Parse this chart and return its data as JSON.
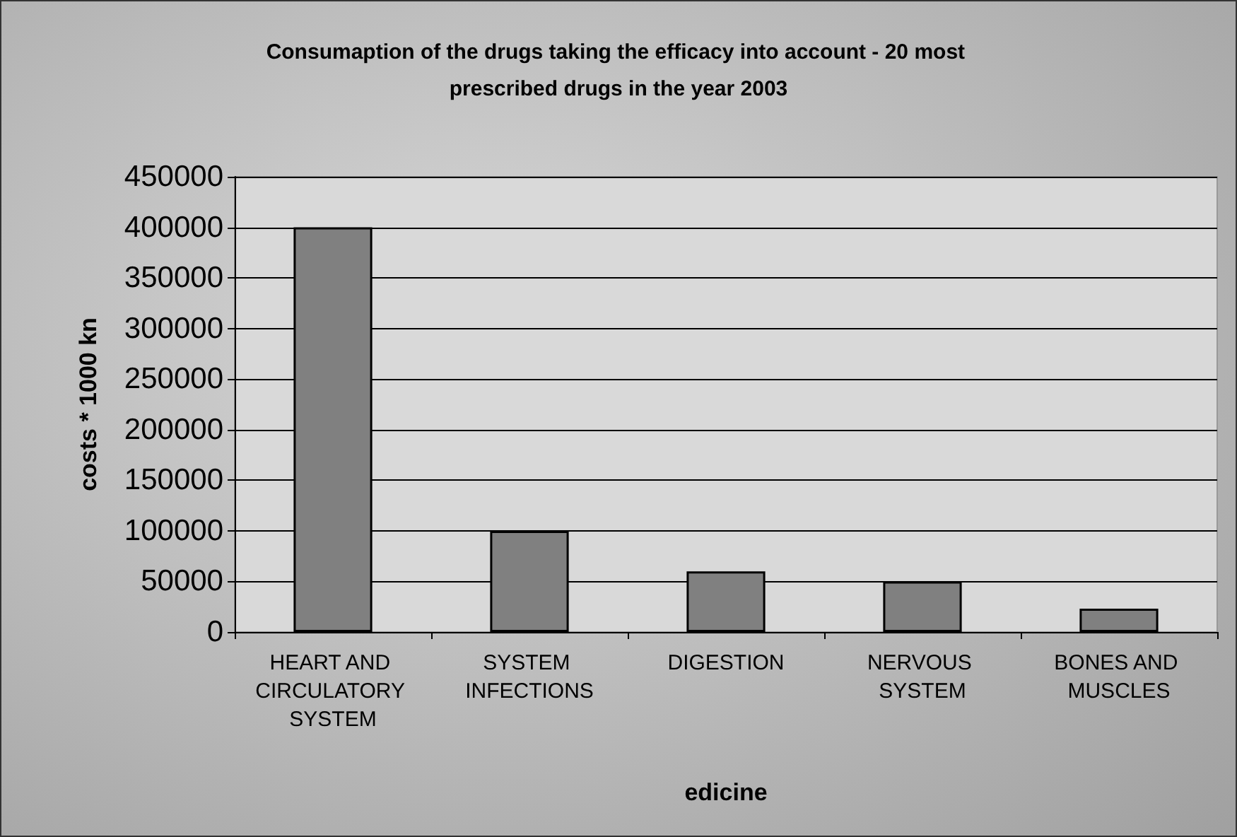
{
  "chart_data": {
    "type": "bar",
    "title": "Consumaption of the drugs taking the efficacy into account - 20 most prescribed drugs in the year 2003",
    "xlabel": "edicine",
    "ylabel": "costs * 1000 kn",
    "categories": [
      "HEART AND CIRCULATORY SYSTEM",
      "SYSTEM INFECTIONS",
      "DIGESTION",
      "NERVOUS SYSTEM",
      "BONES AND MUSCLES"
    ],
    "values": [
      400000,
      100000,
      60000,
      50000,
      23000
    ],
    "color": "#808080",
    "ylim": [
      0,
      450000
    ],
    "yticks": [
      0,
      50000,
      100000,
      150000,
      200000,
      250000,
      300000,
      350000,
      400000,
      450000
    ],
    "grid": "y"
  }
}
